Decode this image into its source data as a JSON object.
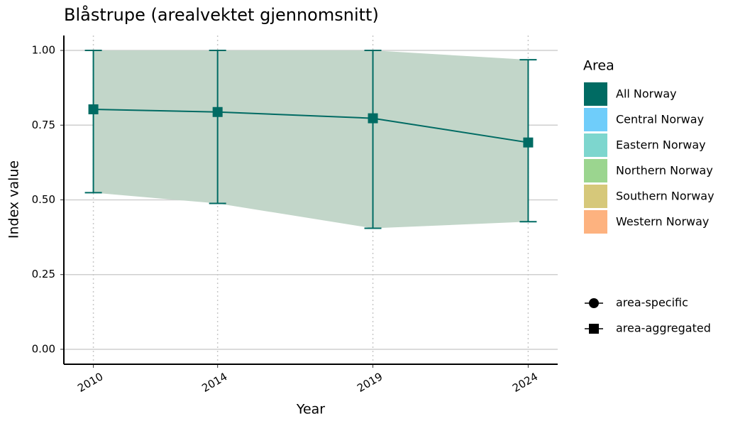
{
  "chart_data": {
    "type": "line",
    "title": "Blåstrupe (arealvektet gjennomsnitt)",
    "x_label": "Year",
    "y_label": "Index value",
    "x": [
      2010,
      2014,
      2019,
      2024
    ],
    "series": [
      {
        "name": "All Norway",
        "color": "#006b63",
        "ribbon_color": "#c2d6c9",
        "values": [
          0.803,
          0.794,
          0.773,
          0.692
        ],
        "lower": [
          0.524,
          0.488,
          0.405,
          0.427
        ],
        "upper": [
          1.0,
          1.0,
          1.0,
          0.969
        ]
      }
    ],
    "xlim": [
      2009.05,
      2024.95
    ],
    "xticks": [
      2010,
      2014,
      2019,
      2024
    ],
    "ylim": [
      -0.05,
      1.05
    ],
    "yticks": [
      {
        "value": 0,
        "label": "0.00"
      },
      {
        "value": 0.25,
        "label": "0.25"
      },
      {
        "value": 0.5,
        "label": "0.50"
      },
      {
        "value": 0.75,
        "label": "0.75"
      },
      {
        "value": 1,
        "label": "1.00"
      }
    ],
    "grid": true,
    "legend": {
      "title": "Area",
      "entries": [
        {
          "name": "All Norway",
          "color": "#006b63"
        },
        {
          "name": "Central Norway",
          "color": "#6fcdfa"
        },
        {
          "name": "Eastern Norway",
          "color": "#7dd6ce"
        },
        {
          "name": "Northern Norway",
          "color": "#9bd58f"
        },
        {
          "name": "Southern Norway",
          "color": "#d6c87a"
        },
        {
          "name": "Western Norway",
          "color": "#fdb27f"
        }
      ]
    },
    "shape_legend": [
      {
        "label": "area-specific",
        "shape": "circle"
      },
      {
        "label": "area-aggregated",
        "shape": "square"
      }
    ]
  }
}
